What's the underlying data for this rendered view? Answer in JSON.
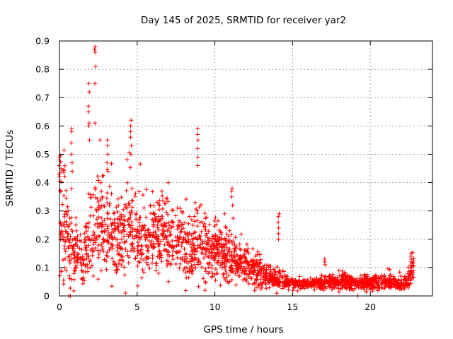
{
  "chart_data": {
    "type": "scatter",
    "title": "Day 145 of 2025, SRMTID for receiver yar2",
    "xlabel": "GPS time / hours",
    "ylabel": "SRMTID / TECUs",
    "xlim": [
      0,
      24
    ],
    "ylim": [
      0,
      0.9
    ],
    "xticks": [
      0,
      5,
      10,
      15,
      20
    ],
    "yticks": [
      0,
      0.1,
      0.2,
      0.3,
      0.4,
      0.5,
      0.6,
      0.7,
      0.8,
      0.9
    ],
    "ytick_labels": [
      "0",
      "0.1",
      "0.2",
      "0.3",
      "0.4",
      "0.5",
      "0.6",
      "0.7",
      "0.8",
      "0.9"
    ],
    "grid": true,
    "marker": "+",
    "color": "#ff0000",
    "envelope": {
      "description": "approximate median and spread of the point cloud vs GPS time (hours)",
      "x": [
        0,
        0.5,
        1.0,
        1.5,
        2.0,
        2.5,
        3.0,
        3.5,
        4.0,
        4.5,
        5.0,
        5.5,
        6.0,
        6.5,
        7.0,
        7.5,
        8.0,
        8.5,
        9.0,
        9.5,
        10.0,
        10.5,
        11.0,
        11.5,
        12.0,
        12.5,
        13.0,
        13.5,
        14.0,
        14.5,
        15.0,
        15.5,
        16.0,
        16.5,
        17.0,
        17.5,
        18.0,
        18.5,
        19.0,
        19.5,
        20.0,
        20.5,
        21.0,
        21.5,
        22.0,
        22.5,
        22.8
      ],
      "median": [
        0.3,
        0.2,
        0.15,
        0.12,
        0.22,
        0.26,
        0.24,
        0.22,
        0.2,
        0.22,
        0.2,
        0.21,
        0.22,
        0.22,
        0.2,
        0.19,
        0.18,
        0.17,
        0.17,
        0.16,
        0.16,
        0.15,
        0.13,
        0.12,
        0.11,
        0.09,
        0.08,
        0.06,
        0.06,
        0.05,
        0.05,
        0.04,
        0.04,
        0.045,
        0.05,
        0.045,
        0.05,
        0.05,
        0.04,
        0.045,
        0.05,
        0.045,
        0.05,
        0.045,
        0.04,
        0.06,
        0.11
      ],
      "spread": [
        0.2,
        0.15,
        0.09,
        0.07,
        0.14,
        0.16,
        0.14,
        0.12,
        0.12,
        0.15,
        0.12,
        0.11,
        0.12,
        0.12,
        0.11,
        0.1,
        0.1,
        0.1,
        0.11,
        0.09,
        0.09,
        0.08,
        0.08,
        0.06,
        0.05,
        0.05,
        0.05,
        0.03,
        0.03,
        0.025,
        0.02,
        0.015,
        0.015,
        0.02,
        0.025,
        0.02,
        0.025,
        0.025,
        0.02,
        0.02,
        0.025,
        0.02,
        0.02,
        0.02,
        0.02,
        0.03,
        0.03
      ]
    },
    "spikes": [
      {
        "x": 0.0,
        "values": [
          0.49,
          0.48,
          0.46,
          0.43,
          0.42
        ]
      },
      {
        "x": 0.8,
        "values": [
          0.59,
          0.58,
          0.54,
          0.5,
          0.47,
          0.44
        ]
      },
      {
        "x": 1.9,
        "values": [
          0.75,
          0.72,
          0.67,
          0.65,
          0.61,
          0.6,
          0.55
        ]
      },
      {
        "x": 2.3,
        "values": [
          0.88,
          0.87,
          0.86,
          0.81,
          0.75,
          0.61
        ]
      },
      {
        "x": 3.1,
        "values": [
          0.55,
          0.53,
          0.5,
          0.47,
          0.44
        ]
      },
      {
        "x": 4.6,
        "values": [
          0.62,
          0.6,
          0.58,
          0.56,
          0.53,
          0.5
        ]
      },
      {
        "x": 8.9,
        "values": [
          0.59,
          0.57,
          0.55,
          0.52,
          0.49,
          0.46
        ]
      },
      {
        "x": 11.1,
        "values": [
          0.38,
          0.37,
          0.35,
          0.32
        ]
      },
      {
        "x": 14.1,
        "values": [
          0.29,
          0.28,
          0.26,
          0.24,
          0.22,
          0.2
        ]
      },
      {
        "x": 17.1,
        "values": [
          0.13,
          0.12,
          0.11
        ]
      },
      {
        "x": 22.6,
        "values": [
          0.15,
          0.14,
          0.13,
          0.12
        ]
      }
    ],
    "zero_points": [
      0.6,
      0.7,
      19.2
    ]
  }
}
